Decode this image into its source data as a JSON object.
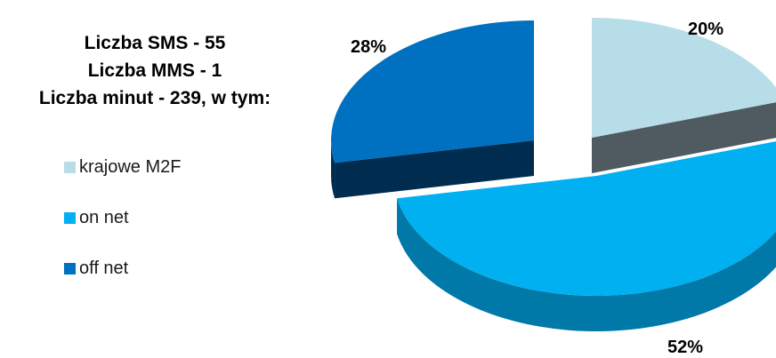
{
  "info": {
    "sms": "Liczba SMS - 55",
    "mms": "Liczba MMS - 1",
    "minutes": "Liczba minut - 239, w tym:"
  },
  "chart_data": {
    "type": "pie",
    "title": "",
    "legend_position": "left",
    "slices": [
      {
        "label": "krajowe M2F",
        "value": 20,
        "display": "20%",
        "color": "#b7dde8",
        "side_color": "#4f5b60"
      },
      {
        "label": "on net",
        "value": 52,
        "display": "52%",
        "color": "#00b0f0",
        "side_color": "#0079a8"
      },
      {
        "label": "off net",
        "value": 28,
        "display": "28%",
        "color": "#0070c0",
        "side_color": "#002d4f"
      }
    ]
  }
}
